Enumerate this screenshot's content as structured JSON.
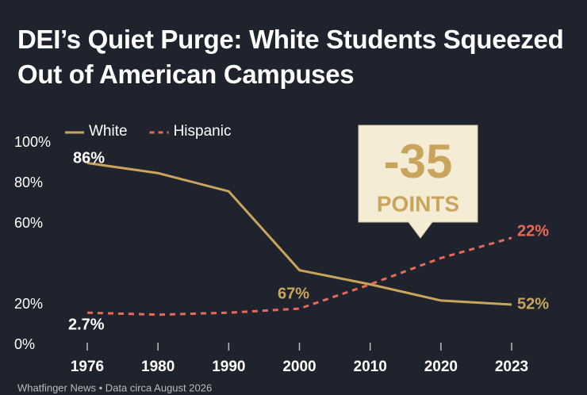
{
  "chart_data": {
    "type": "line",
    "title": "DEI’s Quiet Purge: White Students Squeezed Out of American Campuses",
    "categories": [
      "1976",
      "1980",
      "1990",
      "2000",
      "2010",
      "2020",
      "2023"
    ],
    "series": [
      {
        "name": "White",
        "color": "#c9a45c",
        "dash": false,
        "values": [
          90,
          85,
          76,
          37,
          30,
          22,
          20
        ]
      },
      {
        "name": "Hispanic",
        "color": "#e8695a",
        "dash": true,
        "values": [
          16,
          15,
          16,
          18,
          30,
          43,
          53
        ]
      }
    ],
    "ylim": [
      0,
      100
    ],
    "yticks": [
      {
        "value": 0,
        "label": "0%"
      },
      {
        "value": 20,
        "label": "20%"
      },
      {
        "value": 60,
        "label": "60%"
      },
      {
        "value": 80,
        "label": "80%"
      },
      {
        "value": 100,
        "label": "100%"
      }
    ],
    "annotations": [
      "86%",
      "2.7%",
      "67%",
      "52%",
      "22%"
    ],
    "callout": {
      "number": "-35",
      "label": "POINTS"
    },
    "source": "Whatfinger News • Data circa August 2026"
  }
}
